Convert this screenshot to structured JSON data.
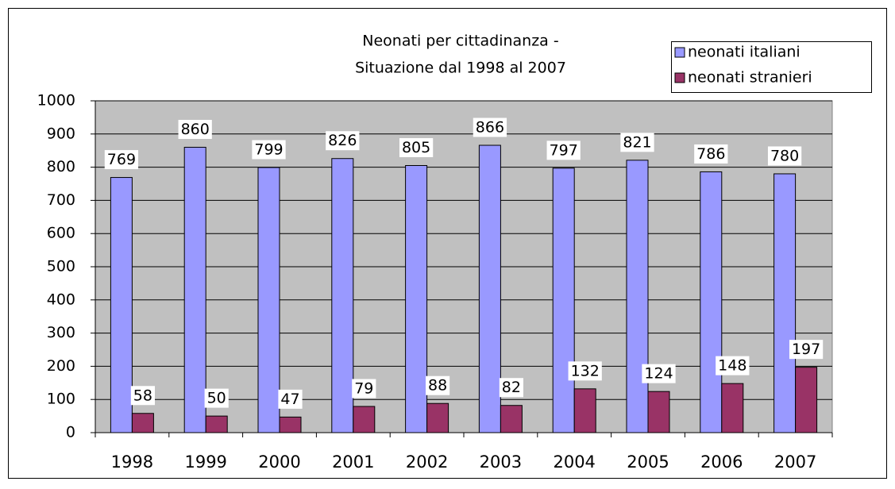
{
  "chart_data": {
    "type": "bar",
    "title": [
      "Neonati per cittadinanza -",
      "Situazione dal 1998 al 2007"
    ],
    "categories": [
      "1998",
      "1999",
      "2000",
      "2001",
      "2002",
      "2003",
      "2004",
      "2005",
      "2006",
      "2007"
    ],
    "series": [
      {
        "name": "neonati italiani",
        "color": "#9999ff",
        "values": [
          769,
          860,
          799,
          826,
          805,
          866,
          797,
          821,
          786,
          780
        ]
      },
      {
        "name": "neonati stranieri",
        "color": "#993366",
        "values": [
          58,
          50,
          47,
          79,
          88,
          82,
          132,
          124,
          148,
          197
        ]
      }
    ],
    "ylim": [
      0,
      1000
    ],
    "yticks": [
      0,
      100,
      200,
      300,
      400,
      500,
      600,
      700,
      800,
      900,
      1000
    ],
    "grid": true,
    "legend": "top-right"
  }
}
